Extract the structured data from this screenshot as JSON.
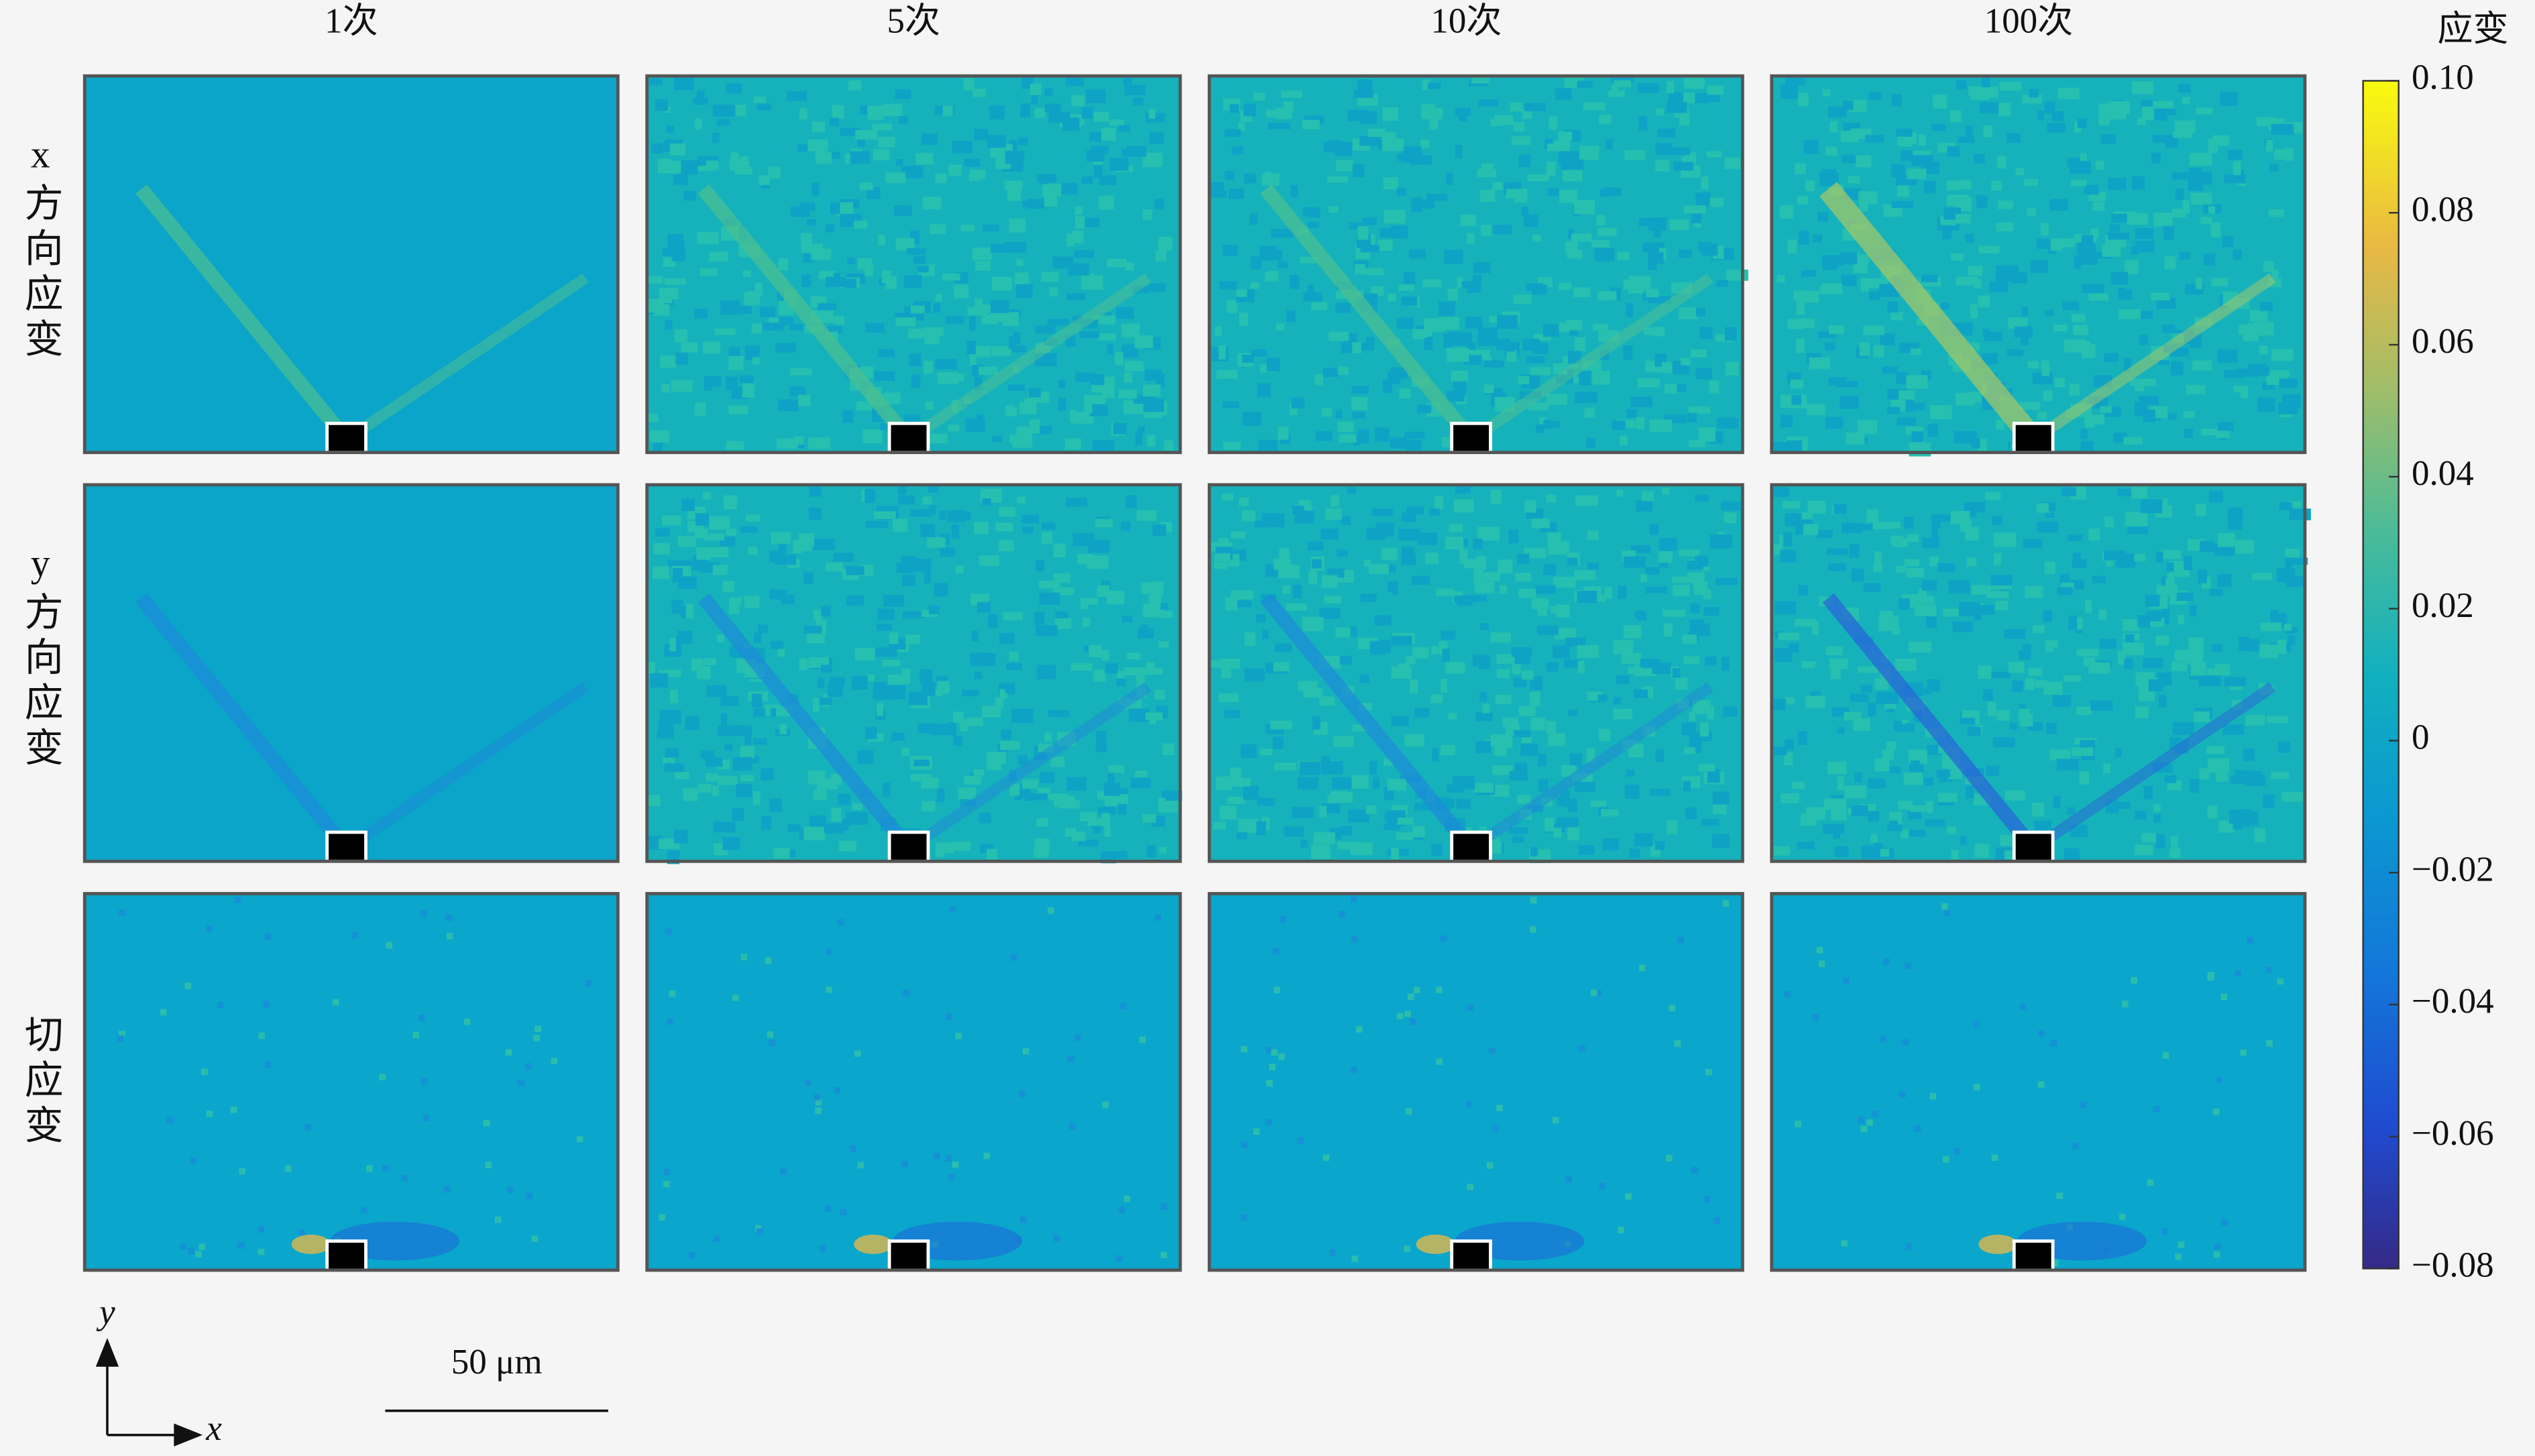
{
  "chart_data": {
    "type": "heatmap-grid",
    "columns": [
      "1次",
      "5次",
      "10次",
      "100次"
    ],
    "rows": [
      "x方向应变",
      "y方向应变",
      "切应变"
    ],
    "colorbar": {
      "label": "应变",
      "lim": [
        -0.08,
        0.1
      ],
      "ticks": [
        {
          "value": 0.1,
          "label": "0.10"
        },
        0.08,
        0.06,
        0.04,
        0.02,
        0,
        {
          "value": -0.02,
          "label": "−0.02"
        },
        {
          "value": -0.04,
          "label": "−0.04"
        },
        {
          "value": -0.06,
          "label": "−0.06"
        },
        {
          "value": -0.08,
          "label": "−0.08"
        }
      ]
    },
    "scale_bar": "50 μm",
    "axes": {
      "x": "x",
      "y": "y"
    }
  }
}
